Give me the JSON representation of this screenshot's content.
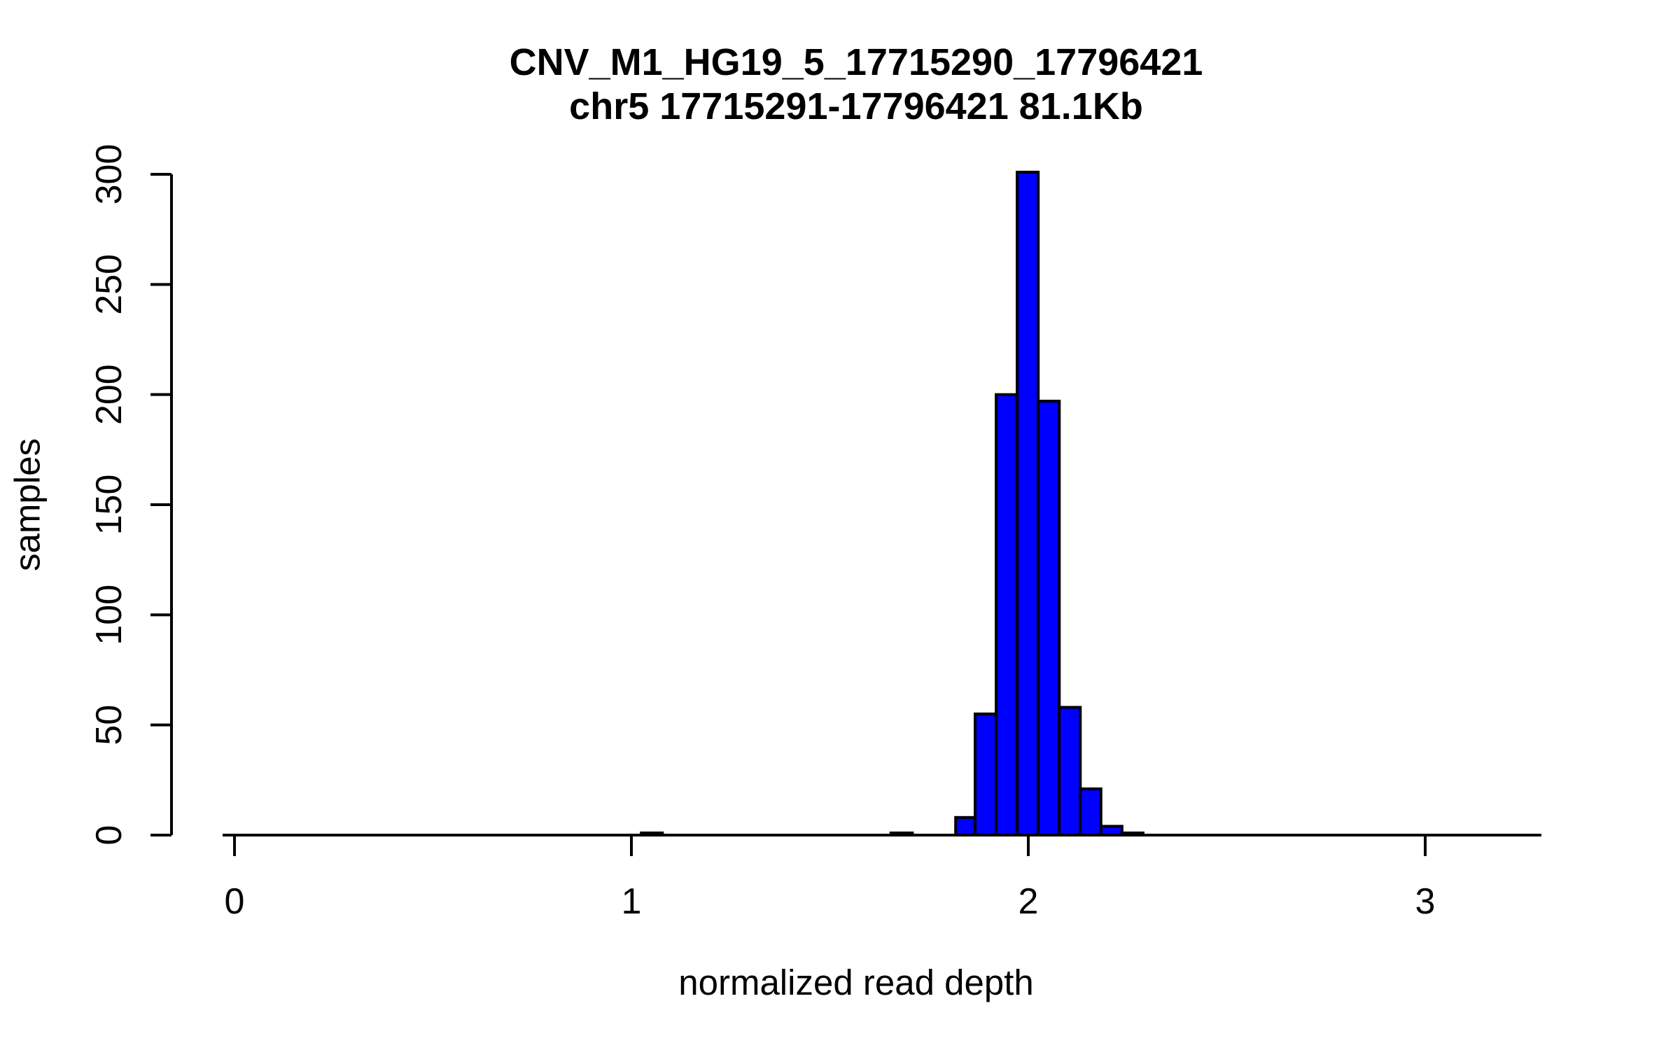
{
  "figure": {
    "title_line1": "CNV_M1_HG19_5_17715290_17796421",
    "title_line2": "chr5 17715291-17796421 81.1Kb",
    "xlabel": "normalized read depth",
    "ylabel": "samples"
  },
  "chart_data": {
    "type": "bar",
    "subtype": "histogram",
    "title": "CNV_M1_HG19_5_17715290_17796421",
    "subtitle": "chr5 17715291-17796421 81.1Kb",
    "xlabel": "normalized read depth",
    "ylabel": "samples",
    "xlim": [
      -0.03,
      3.29
    ],
    "ylim": [
      0,
      300
    ],
    "x_ticks": [
      0,
      1,
      2,
      3
    ],
    "y_ticks": [
      0,
      50,
      100,
      150,
      200,
      250,
      300
    ],
    "grid": false,
    "legend": false,
    "background": "#ffffff",
    "bar_fill": "#0000ff",
    "bar_stroke": "#000000",
    "axis_color": "#000000",
    "bins": [
      {
        "x0": 1.025,
        "x1": 1.078,
        "count": 1
      },
      {
        "x0": 1.654,
        "x1": 1.708,
        "count": 1
      },
      {
        "x0": 1.817,
        "x1": 1.866,
        "count": 8
      },
      {
        "x0": 1.866,
        "x1": 1.919,
        "count": 55
      },
      {
        "x0": 1.919,
        "x1": 1.972,
        "count": 200
      },
      {
        "x0": 1.972,
        "x1": 2.025,
        "count": 301
      },
      {
        "x0": 2.025,
        "x1": 2.078,
        "count": 197
      },
      {
        "x0": 2.078,
        "x1": 2.131,
        "count": 58
      },
      {
        "x0": 2.131,
        "x1": 2.183,
        "count": 21
      },
      {
        "x0": 2.183,
        "x1": 2.236,
        "count": 4
      },
      {
        "x0": 2.236,
        "x1": 2.289,
        "count": 1
      }
    ]
  }
}
